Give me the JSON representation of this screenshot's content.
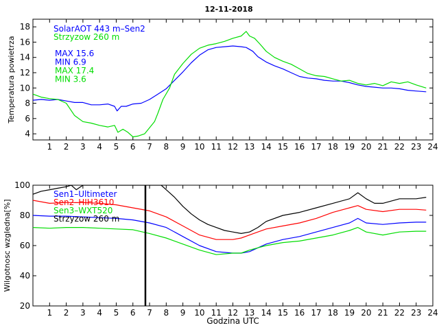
{
  "chart_data": [
    {
      "type": "line",
      "title": "12-11-2018",
      "xlabel": "",
      "ylabel": "Temperatura powietrza",
      "xlim": [
        0,
        24
      ],
      "ylim": [
        3.2,
        19
      ],
      "xticks": [
        1,
        2,
        3,
        4,
        5,
        6,
        7,
        8,
        9,
        10,
        11,
        12,
        13,
        14,
        15,
        16,
        17,
        18,
        19,
        20,
        21,
        22,
        23,
        24
      ],
      "yticks": [
        4,
        6,
        8,
        10,
        12,
        14,
        16,
        18
      ],
      "legend": [
        {
          "text": "SolarAOT 443 m–Sen2",
          "color": "#0000ff"
        },
        {
          "text": "Strzyzow 260 m",
          "color": "#00dd00"
        }
      ],
      "annotations": [
        {
          "text": "MAX 15.6",
          "color": "#0000ff"
        },
        {
          "text": "MIN 6.9",
          "color": "#0000ff"
        },
        {
          "text": "MAX 17.4",
          "color": "#00dd00"
        },
        {
          "text": "MIN 3.6",
          "color": "#00dd00"
        }
      ],
      "series": [
        {
          "name": "SolarAOT 443 m–Sen2",
          "color": "#0000ff",
          "points": [
            [
              0,
              8.4
            ],
            [
              0.5,
              8.5
            ],
            [
              1,
              8.4
            ],
            [
              1.5,
              8.5
            ],
            [
              2,
              8.3
            ],
            [
              2.5,
              8.1
            ],
            [
              3,
              8.1
            ],
            [
              3.5,
              7.8
            ],
            [
              4,
              7.8
            ],
            [
              4.5,
              7.9
            ],
            [
              4.9,
              7.6
            ],
            [
              5.05,
              7.0
            ],
            [
              5.3,
              7.6
            ],
            [
              5.6,
              7.6
            ],
            [
              6,
              7.9
            ],
            [
              6.5,
              8.0
            ],
            [
              7,
              8.5
            ],
            [
              7.5,
              9.2
            ],
            [
              8,
              9.9
            ],
            [
              8.5,
              11.0
            ],
            [
              9,
              12.1
            ],
            [
              9.5,
              13.3
            ],
            [
              10,
              14.3
            ],
            [
              10.5,
              15.0
            ],
            [
              11,
              15.3
            ],
            [
              11.5,
              15.4
            ],
            [
              12,
              15.5
            ],
            [
              12.5,
              15.4
            ],
            [
              12.8,
              15.3
            ],
            [
              13.2,
              14.8
            ],
            [
              13.5,
              14.1
            ],
            [
              14,
              13.4
            ],
            [
              14.5,
              12.9
            ],
            [
              15,
              12.5
            ],
            [
              15.5,
              12.0
            ],
            [
              16,
              11.5
            ],
            [
              16.5,
              11.3
            ],
            [
              17,
              11.2
            ],
            [
              17.5,
              11.0
            ],
            [
              18,
              10.9
            ],
            [
              18.5,
              10.9
            ],
            [
              19,
              10.7
            ],
            [
              19.5,
              10.4
            ],
            [
              20,
              10.2
            ],
            [
              20.5,
              10.1
            ],
            [
              21,
              10.0
            ],
            [
              21.5,
              10.0
            ],
            [
              22,
              9.9
            ],
            [
              22.5,
              9.7
            ],
            [
              23,
              9.6
            ],
            [
              23.6,
              9.5
            ]
          ]
        },
        {
          "name": "Strzyzow 260 m",
          "color": "#00dd00",
          "points": [
            [
              0,
              9.2
            ],
            [
              0.5,
              8.8
            ],
            [
              1,
              8.6
            ],
            [
              1.5,
              8.5
            ],
            [
              2,
              8.0
            ],
            [
              2.5,
              6.4
            ],
            [
              3,
              5.6
            ],
            [
              3.5,
              5.4
            ],
            [
              4,
              5.1
            ],
            [
              4.5,
              4.9
            ],
            [
              4.9,
              5.1
            ],
            [
              5.1,
              4.2
            ],
            [
              5.4,
              4.6
            ],
            [
              5.7,
              4.2
            ],
            [
              6.0,
              3.6
            ],
            [
              6.3,
              3.7
            ],
            [
              6.7,
              4.0
            ],
            [
              7.0,
              4.8
            ],
            [
              7.3,
              5.6
            ],
            [
              7.5,
              6.7
            ],
            [
              7.8,
              8.5
            ],
            [
              8.2,
              10.0
            ],
            [
              8.5,
              11.8
            ],
            [
              9,
              13.2
            ],
            [
              9.5,
              14.4
            ],
            [
              10,
              15.2
            ],
            [
              10.5,
              15.6
            ],
            [
              11,
              15.8
            ],
            [
              11.5,
              16.1
            ],
            [
              12,
              16.5
            ],
            [
              12.5,
              16.8
            ],
            [
              12.8,
              17.4
            ],
            [
              13.0,
              16.8
            ],
            [
              13.3,
              16.5
            ],
            [
              13.6,
              15.8
            ],
            [
              14,
              14.8
            ],
            [
              14.5,
              14.0
            ],
            [
              15,
              13.5
            ],
            [
              15.5,
              13.1
            ],
            [
              16,
              12.5
            ],
            [
              16.5,
              11.9
            ],
            [
              17,
              11.6
            ],
            [
              17.5,
              11.5
            ],
            [
              18,
              11.2
            ],
            [
              18.5,
              10.9
            ],
            [
              19,
              11.0
            ],
            [
              19.5,
              10.6
            ],
            [
              20,
              10.4
            ],
            [
              20.5,
              10.6
            ],
            [
              21,
              10.3
            ],
            [
              21.5,
              10.8
            ],
            [
              22,
              10.6
            ],
            [
              22.5,
              10.8
            ],
            [
              23,
              10.4
            ],
            [
              23.6,
              10.0
            ]
          ]
        }
      ]
    },
    {
      "type": "line",
      "title": "",
      "xlabel": "Godzina UTC",
      "ylabel": "Wilgotnosc wzgledna[%]",
      "xlim": [
        0,
        24
      ],
      "ylim": [
        20,
        100
      ],
      "xticks": [
        1,
        2,
        3,
        4,
        5,
        6,
        7,
        8,
        9,
        10,
        11,
        12,
        13,
        14,
        15,
        16,
        17,
        18,
        19,
        20,
        21,
        22,
        23,
        24
      ],
      "yticks": [
        20,
        40,
        60,
        80,
        100
      ],
      "vline": 6.75,
      "legend": [
        {
          "text": "Sen1–Ultimeter",
          "color": "#0000ff"
        },
        {
          "text": "Sen2–HIH3610",
          "color": "#ff0000"
        },
        {
          "text": "Sen3–WXT520",
          "color": "#00dd00"
        },
        {
          "text": "Strzyzow 260 m",
          "color": "#000000"
        }
      ],
      "series": [
        {
          "name": "Sen1–Ultimeter",
          "color": "#0000ff",
          "points": [
            [
              0,
              80
            ],
            [
              1,
              79.5
            ],
            [
              2,
              79.5
            ],
            [
              3,
              79
            ],
            [
              4,
              78.5
            ],
            [
              5,
              78
            ],
            [
              6,
              77
            ],
            [
              7,
              75
            ],
            [
              8,
              72
            ],
            [
              9,
              66
            ],
            [
              10,
              60
            ],
            [
              11,
              56
            ],
            [
              12,
              55
            ],
            [
              12.5,
              55
            ],
            [
              13,
              56
            ],
            [
              14,
              61
            ],
            [
              15,
              64
            ],
            [
              16,
              66
            ],
            [
              17,
              69
            ],
            [
              18,
              72
            ],
            [
              19,
              75
            ],
            [
              19.5,
              78
            ],
            [
              20,
              75
            ],
            [
              21,
              74
            ],
            [
              22,
              75
            ],
            [
              23,
              75.5
            ],
            [
              23.6,
              75.5
            ]
          ]
        },
        {
          "name": "Sen2–HIH3610",
          "color": "#ff0000",
          "points": [
            [
              0,
              90
            ],
            [
              1,
              88
            ],
            [
              2,
              88.5
            ],
            [
              3,
              88.5
            ],
            [
              4,
              88
            ],
            [
              5,
              87
            ],
            [
              6,
              85
            ],
            [
              7,
              83
            ],
            [
              8,
              79
            ],
            [
              9,
              73
            ],
            [
              10,
              67
            ],
            [
              11,
              64
            ],
            [
              12,
              64
            ],
            [
              12.5,
              65
            ],
            [
              13,
              67
            ],
            [
              14,
              71
            ],
            [
              15,
              73
            ],
            [
              16,
              75
            ],
            [
              17,
              78
            ],
            [
              18,
              82
            ],
            [
              19,
              85
            ],
            [
              19.5,
              86.5
            ],
            [
              20,
              84
            ],
            [
              21,
              82.5
            ],
            [
              22,
              84
            ],
            [
              23,
              84
            ],
            [
              23.6,
              83.5
            ]
          ]
        },
        {
          "name": "Sen3–WXT520",
          "color": "#00dd00",
          "points": [
            [
              0,
              72
            ],
            [
              1,
              71.5
            ],
            [
              2,
              72
            ],
            [
              3,
              72
            ],
            [
              4,
              71.5
            ],
            [
              5,
              71
            ],
            [
              6,
              70.5
            ],
            [
              7,
              68
            ],
            [
              8,
              65
            ],
            [
              9,
              61
            ],
            [
              10,
              57
            ],
            [
              11,
              54
            ],
            [
              12,
              55
            ],
            [
              12.5,
              55
            ],
            [
              13,
              57
            ],
            [
              14,
              60
            ],
            [
              15,
              62
            ],
            [
              16,
              63
            ],
            [
              17,
              65
            ],
            [
              18,
              67
            ],
            [
              19,
              70
            ],
            [
              19.5,
              72
            ],
            [
              20,
              69
            ],
            [
              21,
              67
            ],
            [
              22,
              69
            ],
            [
              23,
              69.5
            ],
            [
              23.6,
              69.5
            ]
          ]
        },
        {
          "name": "Strzyzow 260 m",
          "color": "#000000",
          "points": [
            [
              0,
              94
            ],
            [
              0.5,
              96
            ],
            [
              1,
              97
            ],
            [
              1.5,
              98
            ],
            [
              2,
              99
            ],
            [
              2.3,
              100
            ],
            [
              2.6,
              97
            ],
            [
              3,
              100
            ],
            [
              3.3,
              100
            ],
            [
              7.7,
              100
            ],
            [
              8,
              97
            ],
            [
              8.5,
              92
            ],
            [
              9,
              86
            ],
            [
              9.5,
              81
            ],
            [
              10,
              77
            ],
            [
              10.5,
              74
            ],
            [
              11,
              72
            ],
            [
              11.5,
              70
            ],
            [
              12,
              69
            ],
            [
              12.5,
              68
            ],
            [
              13,
              69
            ],
            [
              13.5,
              72
            ],
            [
              14,
              76
            ],
            [
              15,
              80
            ],
            [
              16,
              82
            ],
            [
              17,
              85
            ],
            [
              18,
              88
            ],
            [
              19,
              91
            ],
            [
              19.5,
              95
            ],
            [
              20,
              91
            ],
            [
              20.5,
              88
            ],
            [
              21,
              88
            ],
            [
              22,
              91
            ],
            [
              23,
              91
            ],
            [
              23.6,
              92
            ]
          ]
        }
      ]
    }
  ]
}
